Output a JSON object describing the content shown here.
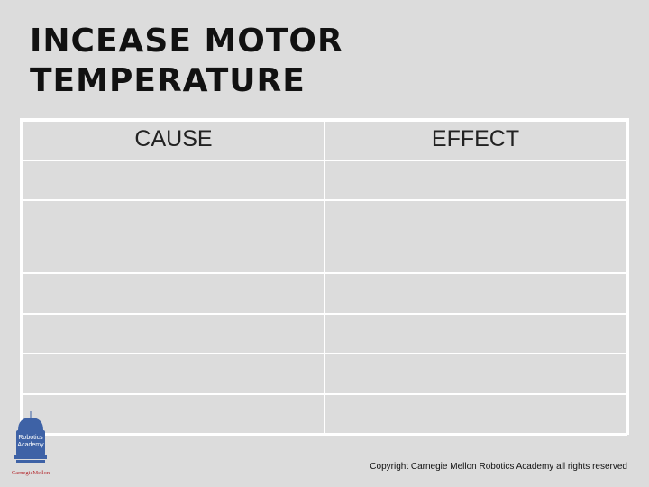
{
  "title": {
    "line1": "INCEASE MOTOR",
    "line2": "TEMPERATURE"
  },
  "table": {
    "headers": [
      "CAUSE",
      "EFFECT"
    ],
    "rows": [
      [
        "",
        ""
      ],
      [
        "",
        ""
      ],
      [
        "",
        ""
      ],
      [
        "",
        ""
      ],
      [
        "",
        ""
      ],
      [
        "",
        ""
      ]
    ]
  },
  "logo": {
    "icon": "robotics-academy-logo-icon",
    "text_line1": "Robotics",
    "text_line2": "Academy",
    "org": "CarnegieMellon"
  },
  "footer": {
    "copyright": "Copyright Carnegie Mellon Robotics Academy all rights reserved"
  },
  "colors": {
    "background": "#dcdcdc",
    "grid_lines": "#ffffff",
    "logo_blue": "#3e62a6",
    "logo_red": "#b3282d"
  }
}
